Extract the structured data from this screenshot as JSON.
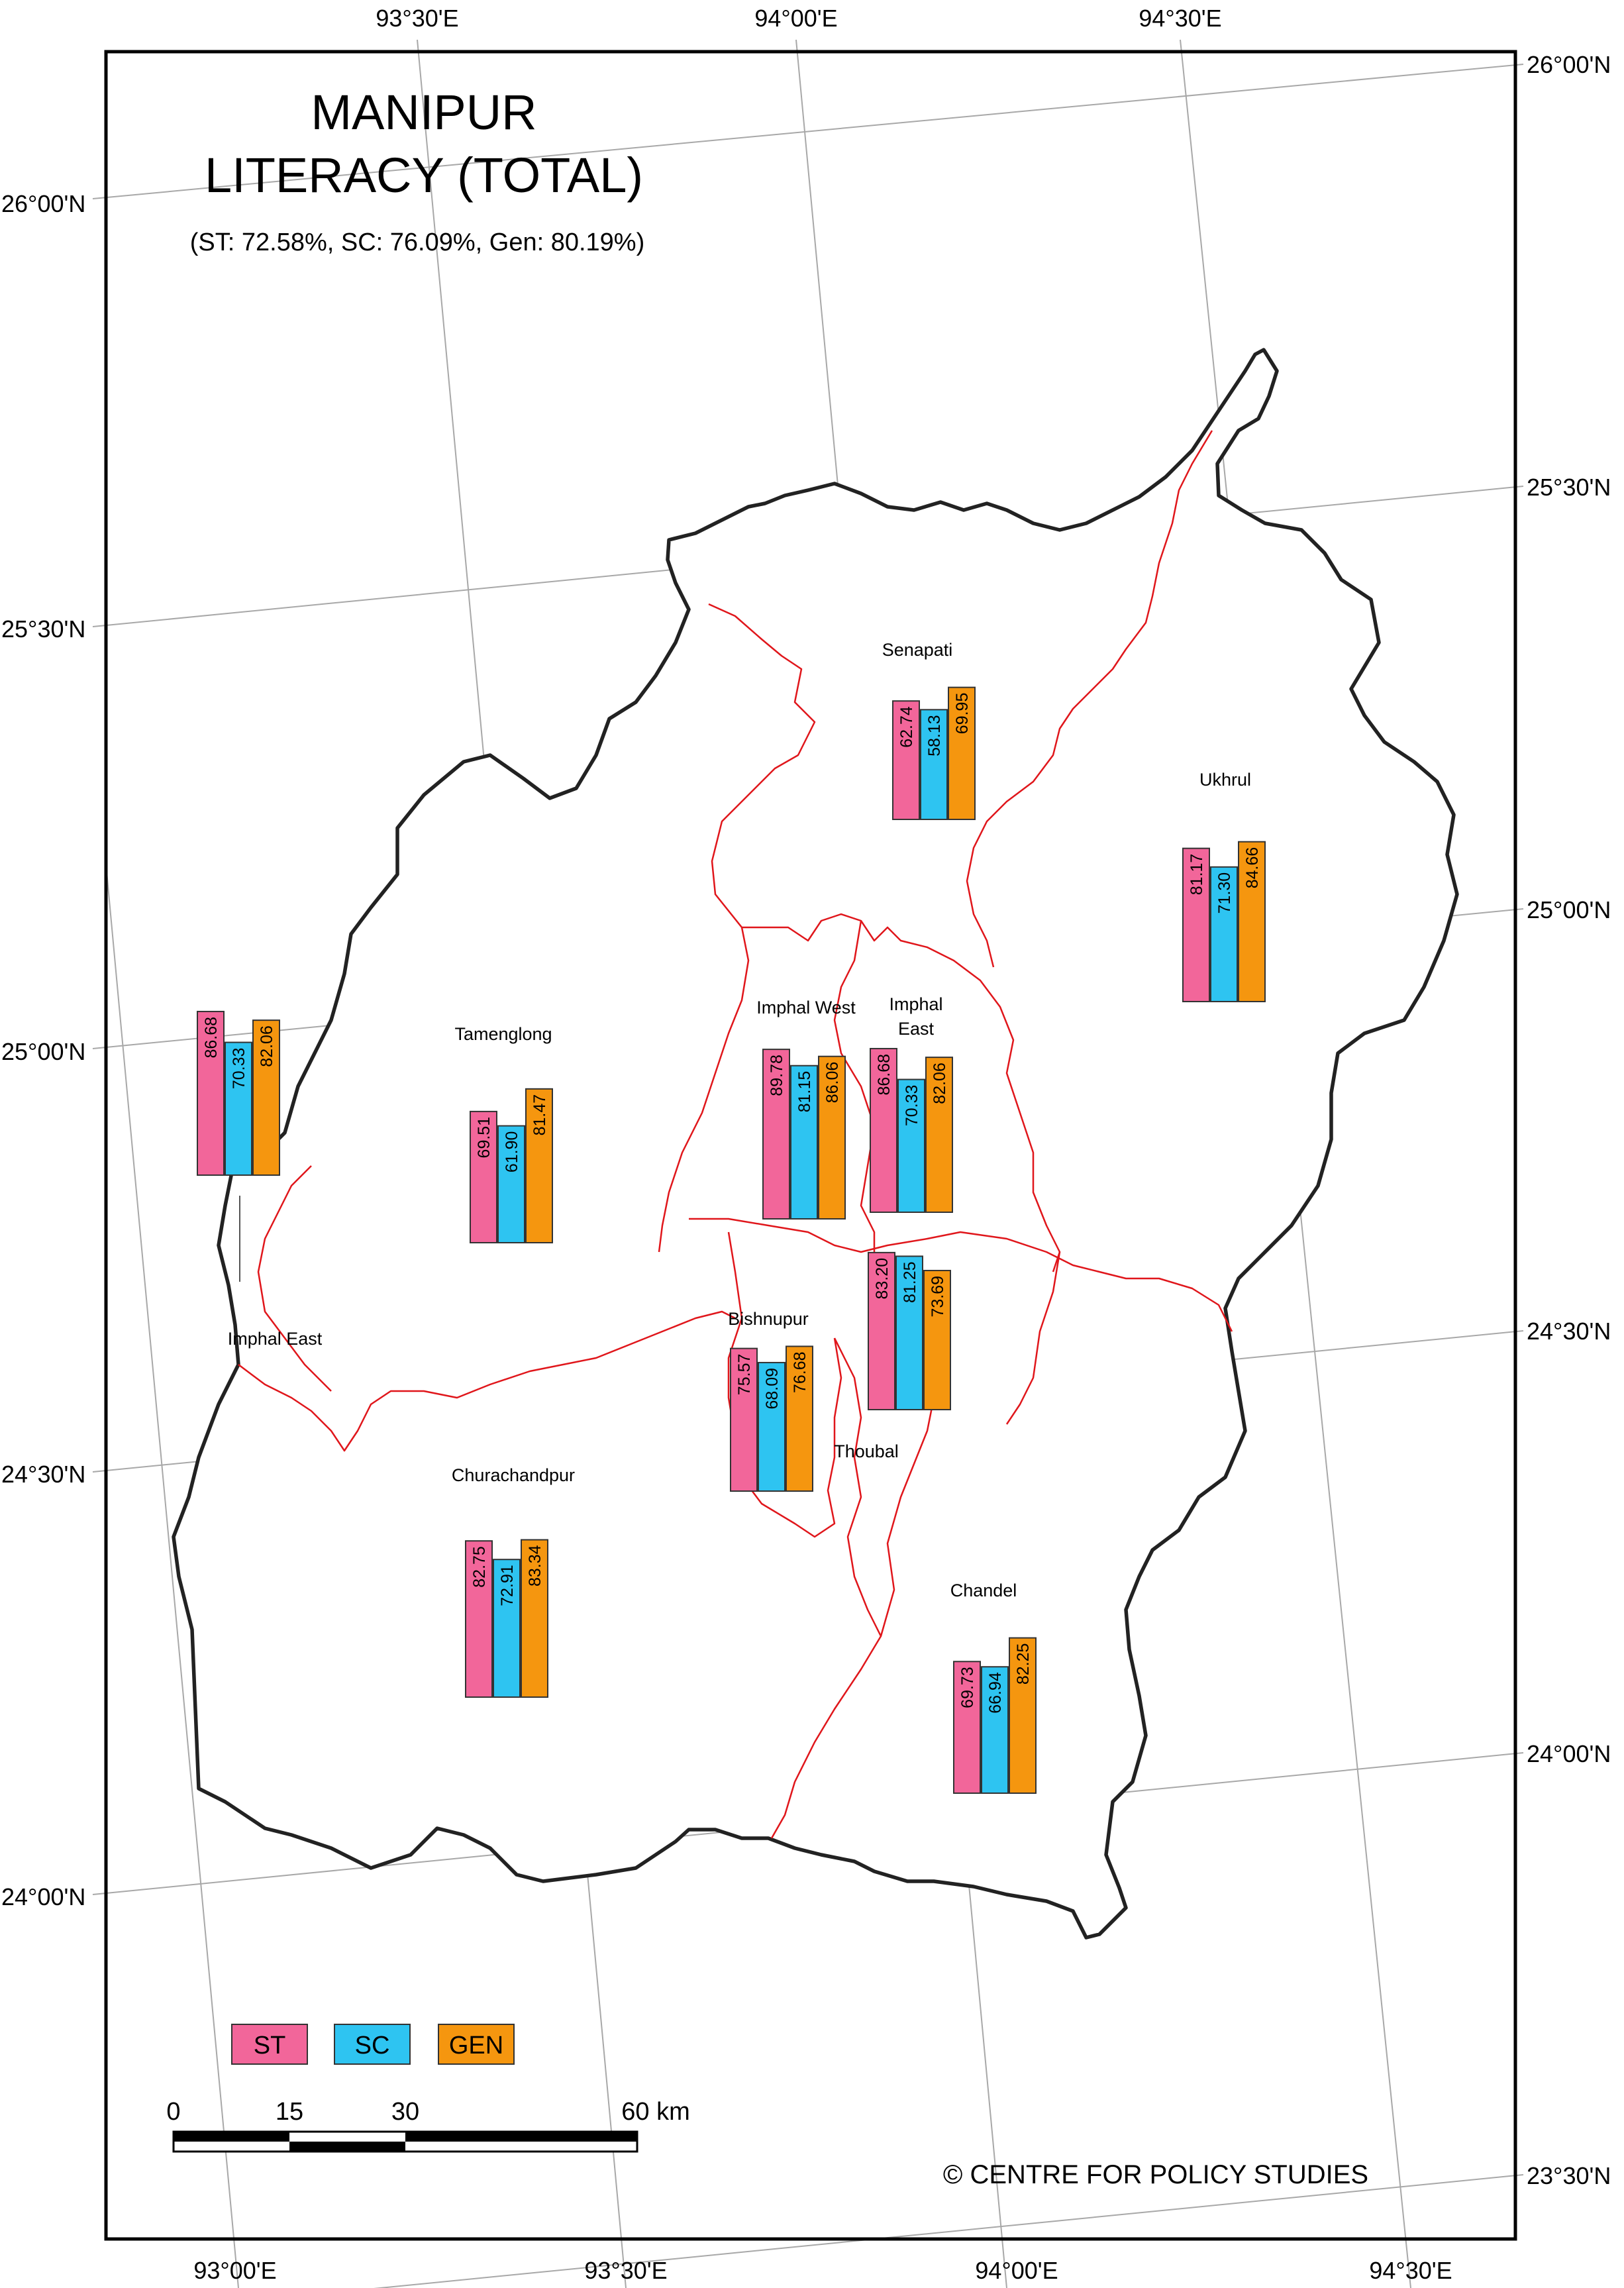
{
  "title_line1": "MANIPUR",
  "title_line2": "LITERACY (TOTAL)",
  "subtitle": "(ST: 72.58%, SC: 76.09%, Gen: 80.19%)",
  "colors": {
    "ST": "#f2669a",
    "SC": "#2ec4f1",
    "GEN": "#f5960f"
  },
  "legend": [
    {
      "key": "ST",
      "label": "ST"
    },
    {
      "key": "SC",
      "label": "SC"
    },
    {
      "key": "GEN",
      "label": "GEN"
    }
  ],
  "graticule": {
    "top": [
      "93°30'E",
      "94°00'E",
      "94°30'E"
    ],
    "bottom": [
      "93°00'E",
      "93°30'E",
      "94°00'E",
      "94°30'E"
    ],
    "left": [
      "26°00'N",
      "25°30'N",
      "25°00'N",
      "24°30'N",
      "24°00'N"
    ],
    "right": [
      "26°00'N",
      "25°30'N",
      "25°00'N",
      "24°30'N",
      "24°00'N",
      "23°30'N"
    ]
  },
  "scale_bar": {
    "labels": [
      "0",
      "15",
      "30",
      "60 km"
    ]
  },
  "credit": "© CENTRE FOR POLICY STUDIES",
  "districts": [
    {
      "name": "Senapati",
      "ST": "62.74",
      "SC": "58.13",
      "GEN": "69.95"
    },
    {
      "name": "Ukhrul",
      "ST": "81.17",
      "SC": "71.30",
      "GEN": "84.66"
    },
    {
      "name": "Tamenglong",
      "ST": "69.51",
      "SC": "61.90",
      "GEN": "81.47"
    },
    {
      "name": "Imphal West",
      "ST": "89.78",
      "SC": "81.15",
      "GEN": "86.06"
    },
    {
      "name_line1": "Imphal",
      "name_line2": "East",
      "ST": "86.68",
      "SC": "70.33",
      "GEN": "82.06"
    },
    {
      "name": "Imphal East",
      "ST": "86.68",
      "SC": "70.33",
      "GEN": "82.06"
    },
    {
      "name": "Bishnupur",
      "ST": "75.57",
      "SC": "68.09",
      "GEN": "76.68"
    },
    {
      "name": "Thoubal",
      "ST": "83.20",
      "SC": "81.25",
      "GEN": "73.69"
    },
    {
      "name": "Churachandpur",
      "ST": "82.75",
      "SC": "72.91",
      "GEN": "83.34"
    },
    {
      "name": "Chandel",
      "ST": "69.73",
      "SC": "66.94",
      "GEN": "82.25"
    }
  ]
}
